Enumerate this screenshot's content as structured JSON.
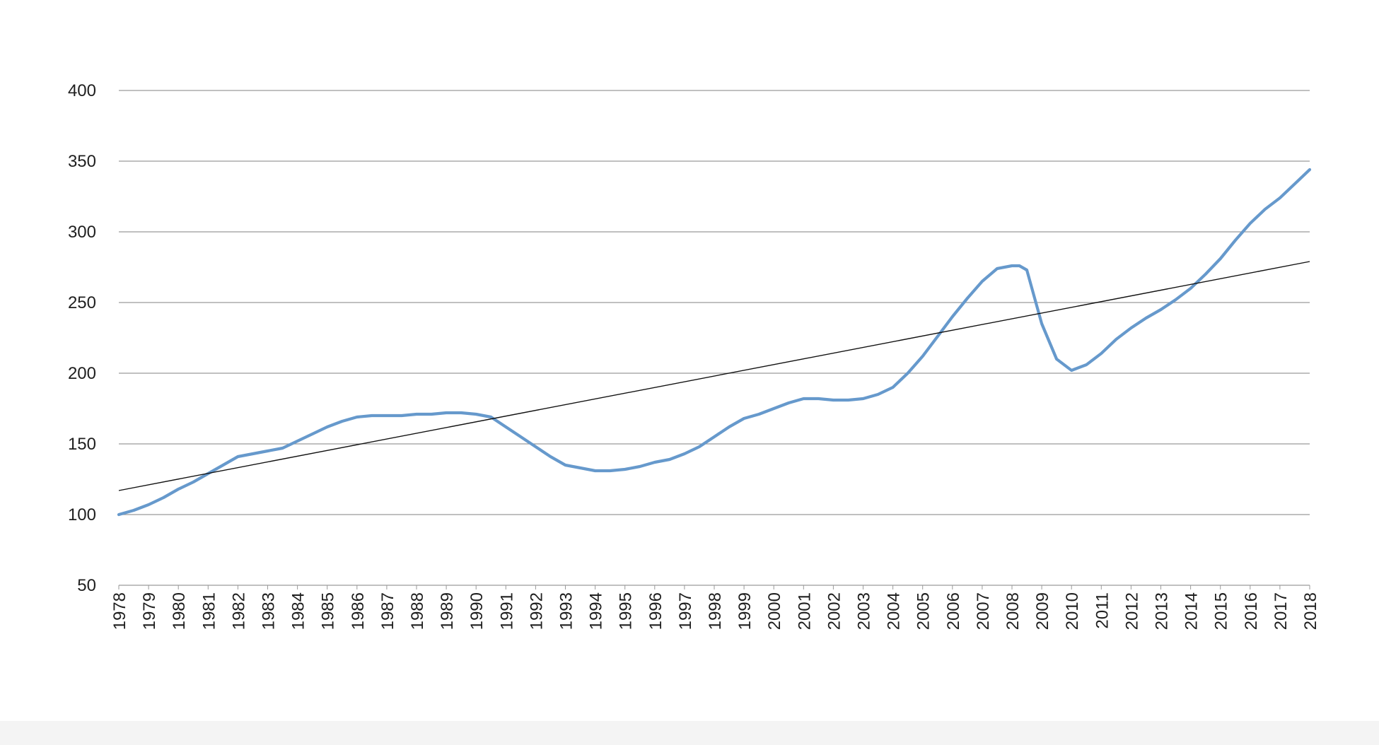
{
  "chart_data": {
    "type": "line",
    "title": "",
    "xlabel": "",
    "ylabel": "",
    "ylim": [
      50,
      400
    ],
    "yticks": [
      50,
      100,
      150,
      200,
      250,
      300,
      350,
      400
    ],
    "xlim": [
      1978,
      2018
    ],
    "xticks": [
      "1978",
      "1979",
      "1980",
      "1981",
      "1982",
      "1983",
      "1984",
      "1985",
      "1986",
      "1987",
      "1988",
      "1989",
      "1990",
      "1991",
      "1992",
      "1993",
      "1994",
      "1995",
      "1996",
      "1997",
      "1998",
      "1999",
      "2000",
      "2001",
      "2002",
      "2003",
      "2004",
      "2005",
      "2006",
      "2007",
      "2008",
      "2009",
      "2010",
      "2011",
      "2012",
      "2013",
      "2014",
      "2015",
      "2016",
      "2017",
      "2018"
    ],
    "grid": true,
    "legend": "none",
    "colors": {
      "series": "#6699cc",
      "trend": "#111111",
      "grid": "#9a9a9a"
    },
    "series": [
      {
        "x": [
          1978.0,
          1978.5,
          1979.0,
          1979.5,
          1980.0,
          1980.5,
          1981.0,
          1981.5,
          1982.0,
          1982.5,
          1983.0,
          1983.5,
          1984.0,
          1984.5,
          1985.0,
          1985.5,
          1986.0,
          1986.5,
          1987.0,
          1987.5,
          1988.0,
          1988.5,
          1989.0,
          1989.5,
          1990.0,
          1990.5,
          1991.0,
          1991.5,
          1992.0,
          1992.5,
          1993.0,
          1993.5,
          1994.0,
          1994.5,
          1995.0,
          1995.5,
          1996.0,
          1996.5,
          1997.0,
          1997.5,
          1998.0,
          1998.5,
          1999.0,
          1999.5,
          2000.0,
          2000.5,
          2001.0,
          2001.5,
          2002.0,
          2002.5,
          2003.0,
          2003.5,
          2004.0,
          2004.5,
          2005.0,
          2005.5,
          2006.0,
          2006.5,
          2007.0,
          2007.5,
          2008.0,
          2008.25,
          2008.5,
          2009.0,
          2009.5,
          2010.0,
          2010.5,
          2011.0,
          2011.5,
          2012.0,
          2012.5,
          2013.0,
          2013.5,
          2014.0,
          2014.5,
          2015.0,
          2015.5,
          2016.0,
          2016.5,
          2017.0,
          2017.5,
          2018.0
        ],
        "values": [
          100,
          103,
          107,
          112,
          118,
          123,
          129,
          135,
          141,
          143,
          145,
          147,
          152,
          157,
          162,
          166,
          169,
          170,
          170,
          170,
          171,
          171,
          172,
          172,
          171,
          169,
          162,
          155,
          148,
          141,
          135,
          133,
          131,
          131,
          132,
          134,
          137,
          139,
          143,
          148,
          155,
          162,
          168,
          171,
          175,
          179,
          182,
          182,
          181,
          181,
          182,
          185,
          190,
          200,
          212,
          226,
          240,
          253,
          265,
          274,
          276,
          276,
          273,
          235,
          210,
          202,
          206,
          214,
          224,
          232,
          239,
          245,
          252,
          260,
          270,
          281,
          294,
          306,
          316,
          324,
          334,
          344
        ]
      },
      {
        "x": [
          1978,
          2018
        ],
        "values": [
          117,
          279
        ],
        "style": "trend"
      }
    ]
  }
}
